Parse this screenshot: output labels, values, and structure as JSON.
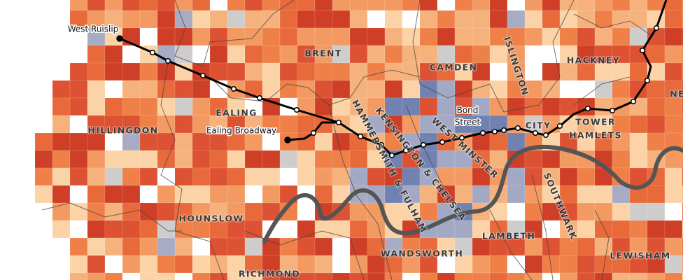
{
  "map": {
    "boroughs": [
      {
        "lines": [
          "BRENT"
        ]
      },
      {
        "lines": [
          "CAMDEN"
        ]
      },
      {
        "lines": [
          "ISLINGTON"
        ]
      },
      {
        "lines": [
          "HACKNEY"
        ]
      },
      {
        "lines": [
          "EALING"
        ]
      },
      {
        "lines": [
          "HILLINGDON"
        ]
      },
      {
        "lines": [
          "HOUNSLOW"
        ]
      },
      {
        "lines": [
          "RICHMOND"
        ]
      },
      {
        "lines": [
          "WANDSWORTH"
        ]
      },
      {
        "lines": [
          "LAMBETH"
        ]
      },
      {
        "lines": [
          "SOUTHWARK"
        ]
      },
      {
        "lines": [
          "LEWISHAM"
        ]
      },
      {
        "lines": [
          "TOWER",
          "HAMLETS"
        ]
      },
      {
        "lines": [
          "CITY"
        ]
      },
      {
        "lines": [
          "WEST MINSTER"
        ]
      },
      {
        "lines": [
          "KENSINGTON & CHELSEA"
        ]
      },
      {
        "lines": [
          "HAMMERSMITH & FULHAM"
        ]
      },
      {
        "lines": [
          "NE"
        ]
      }
    ],
    "stations": [
      {
        "lines": [
          "West Ruislip"
        ]
      },
      {
        "lines": [
          "Ealing Broadway"
        ]
      },
      {
        "lines": [
          "Bond",
          "Street"
        ]
      }
    ]
  }
}
